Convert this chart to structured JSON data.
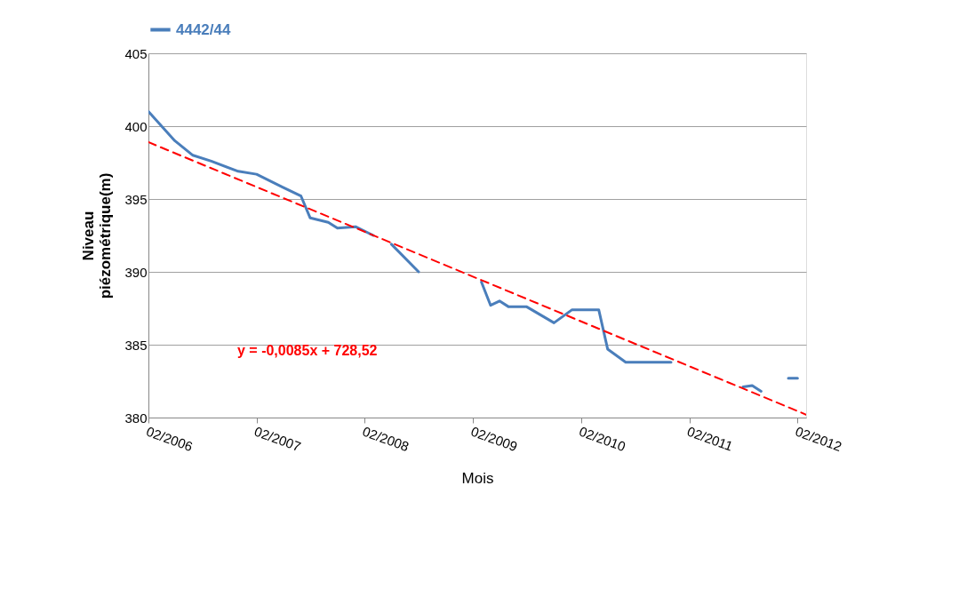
{
  "chart_data": {
    "type": "line",
    "xlabel": "Mois",
    "ylabel": "Niveau piézométrique(m)",
    "annotations": [
      "y = -0,0085x + 728,52"
    ],
    "series": [
      {
        "name": "4442/44",
        "color": "#4a7ebb",
        "x": [
          "2006-02",
          "2006-05",
          "2006-07",
          "2006-09",
          "2006-12",
          "2007-02",
          "2007-05",
          "2007-07",
          "2007-08",
          "2007-10",
          "2007-11",
          "2008-01",
          "2008-03",
          "2008-04",
          "2008-05",
          "2008-08",
          "2008-10",
          "2009-03",
          "2009-04",
          "2009-05",
          "2009-06",
          "2009-08",
          "2009-11",
          "2010-01",
          "2010-04",
          "2010-05",
          "2010-07",
          "2010-12",
          "2011-03",
          "2011-08",
          "2011-09",
          "2011-10",
          "2011-11",
          "2012-01",
          "2012-02"
        ],
        "values": [
          401.0,
          399.0,
          398.0,
          397.6,
          396.9,
          396.7,
          395.8,
          395.2,
          393.7,
          393.4,
          393.0,
          393.1,
          392.5,
          null,
          391.9,
          390.0,
          null,
          389.3,
          387.7,
          388.0,
          387.6,
          387.6,
          386.5,
          387.4,
          387.4,
          384.7,
          383.8,
          383.8,
          null,
          382.1,
          382.2,
          381.8,
          null,
          382.7,
          382.7
        ]
      },
      {
        "type": "line",
        "color": "#ff0000",
        "line_style": "dashed",
        "x": [
          "2006-02",
          "2012-03"
        ],
        "values": [
          398.9,
          380.2
        ]
      }
    ],
    "xlim": [
      "2006-02",
      "2012-03"
    ],
    "xticks": [
      {
        "value": "2006-02",
        "label": "02/2006"
      },
      {
        "value": "2007-02",
        "label": "02/2007"
      },
      {
        "value": "2008-02",
        "label": "02/2008"
      },
      {
        "value": "2009-02",
        "label": "02/2009"
      },
      {
        "value": "2010-02",
        "label": "02/2010"
      },
      {
        "value": "2011-02",
        "label": "02/2011"
      },
      {
        "value": "2012-02",
        "label": "02/2012"
      }
    ],
    "ylim": [
      380,
      405
    ],
    "yticks": [
      380,
      385,
      390,
      395,
      400,
      405
    ],
    "grid": "y",
    "legend": "top",
    "marker": "none",
    "line_style": "solid"
  }
}
